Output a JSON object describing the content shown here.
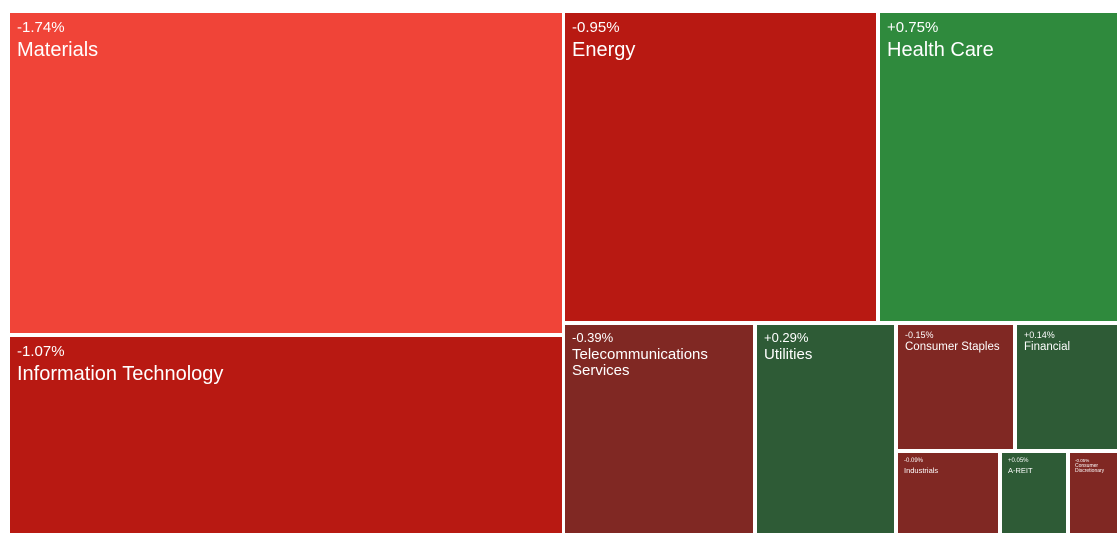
{
  "chart_data": {
    "type": "heatmap",
    "title": "",
    "colors": {
      "strong_down": "#f04438",
      "down": "#b81912",
      "mild_down": "#802823",
      "up": "#2f8a3d",
      "mild_up": "#2e5b36"
    },
    "sectors": [
      {
        "name": "Materials",
        "change": "-1.74%",
        "change_pct": -1.74,
        "color": "#f04438"
      },
      {
        "name": "Information Technology",
        "change": "-1.07%",
        "change_pct": -1.07,
        "color": "#b81912"
      },
      {
        "name": "Energy",
        "change": "-0.95%",
        "change_pct": -0.95,
        "color": "#b81912"
      },
      {
        "name": "Health Care",
        "change": "+0.75%",
        "change_pct": 0.75,
        "color": "#2f8a3d"
      },
      {
        "name": "Telecommunications Services",
        "change": "-0.39%",
        "change_pct": -0.39,
        "color": "#802823"
      },
      {
        "name": "Utilities",
        "change": "+0.29%",
        "change_pct": 0.29,
        "color": "#2e5b36"
      },
      {
        "name": "Consumer Staples",
        "change": "-0.15%",
        "change_pct": -0.15,
        "color": "#802823"
      },
      {
        "name": "Financial",
        "change": "+0.14%",
        "change_pct": 0.14,
        "color": "#2e5b36"
      },
      {
        "name": "Industrials",
        "change": "-0.09%",
        "change_pct": -0.09,
        "color": "#802823"
      },
      {
        "name": "A-REIT",
        "change": "+0.05%",
        "change_pct": 0.05,
        "color": "#2e5b36"
      },
      {
        "name": "Consumer Discretionary",
        "change": "-0.05%",
        "change_pct": -0.05,
        "color": "#802823"
      }
    ]
  }
}
